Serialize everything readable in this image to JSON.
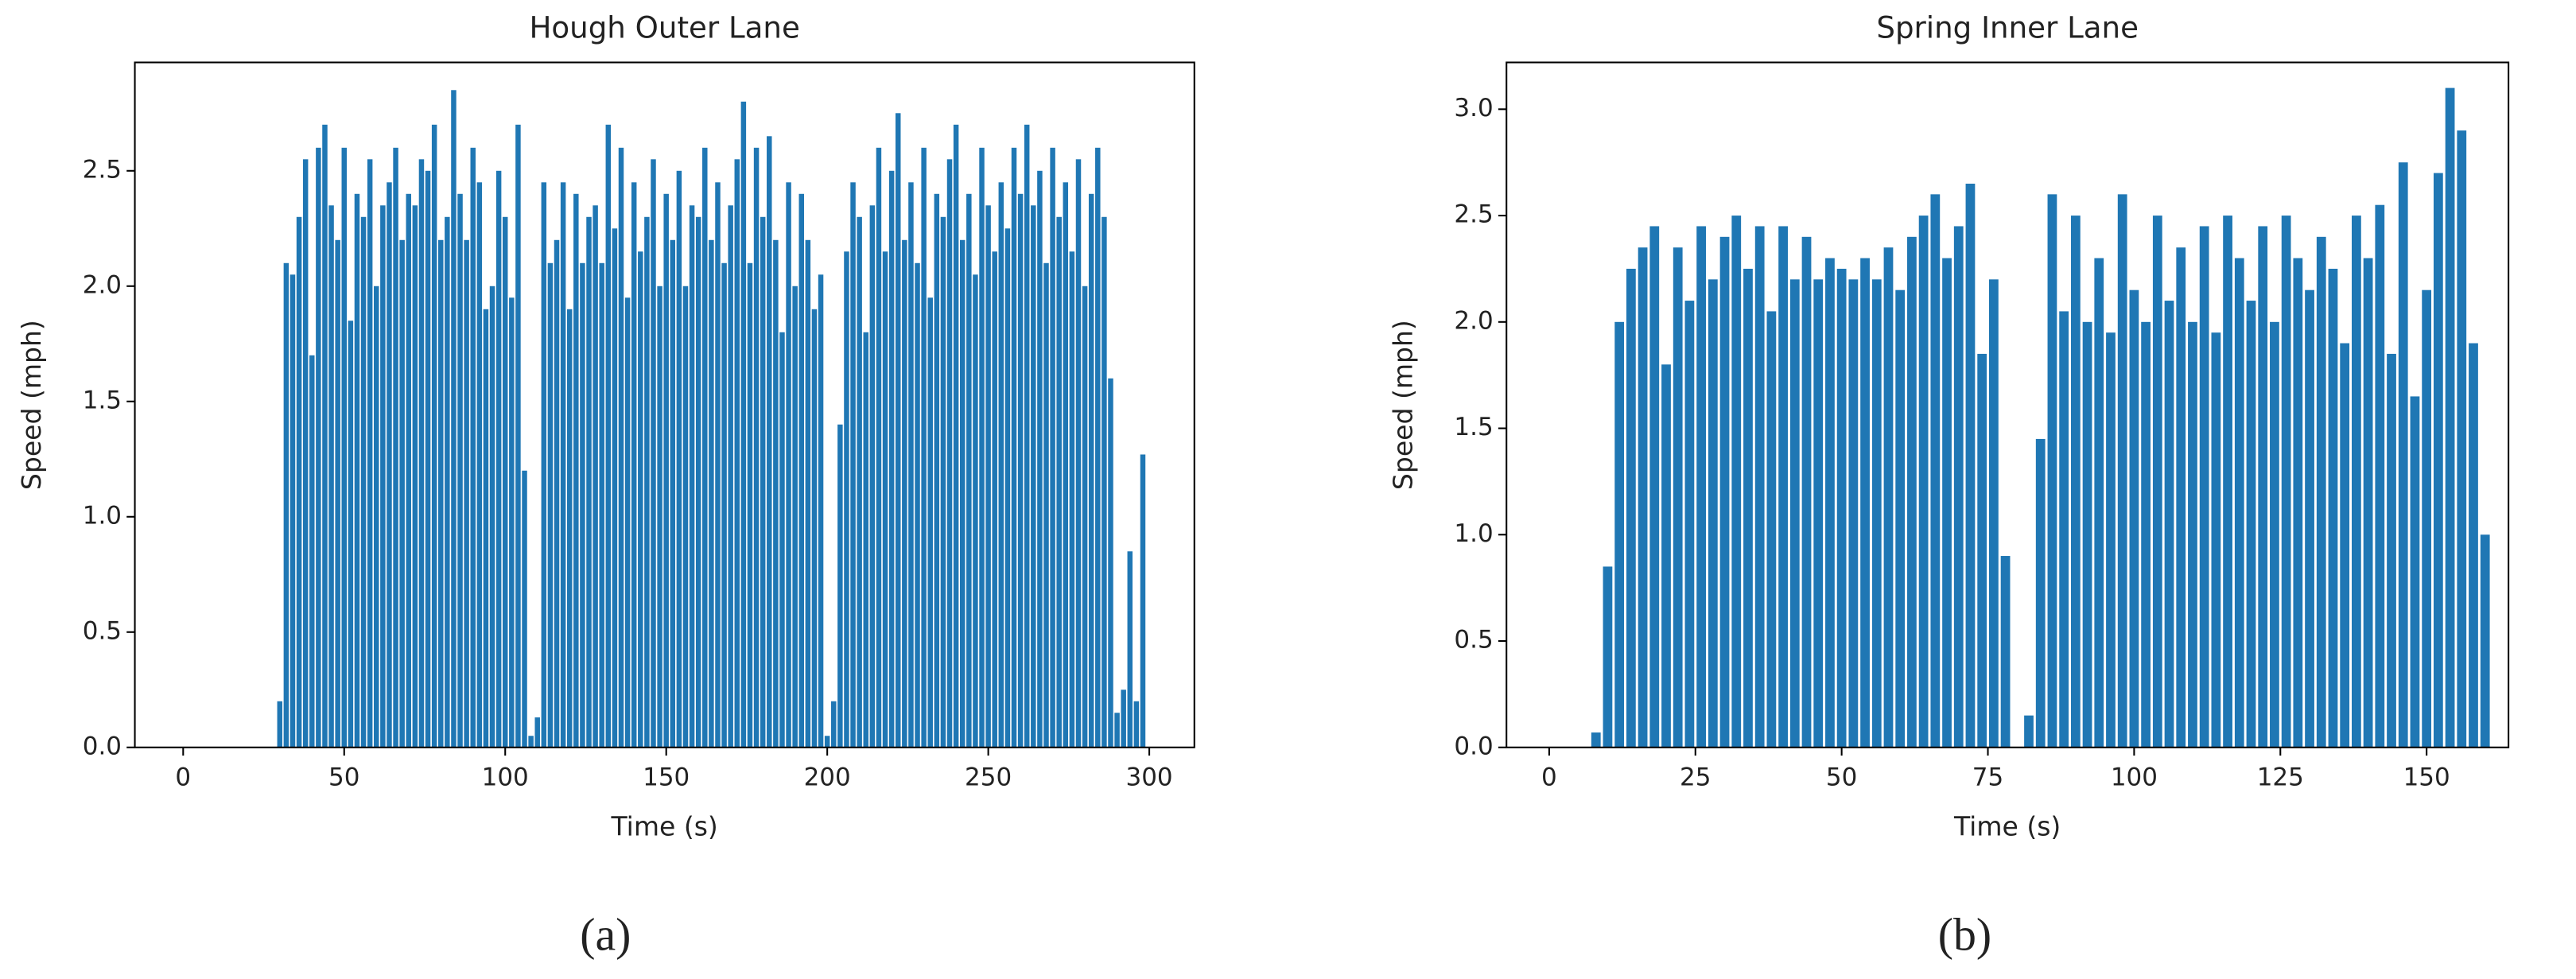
{
  "chart_data": [
    {
      "type": "bar",
      "title": "Hough Outer Lane",
      "xlabel": "Time (s)",
      "ylabel": "Speed (mph)",
      "caption": "(a)",
      "color": "#1f77b4",
      "x": [
        30,
        32,
        34,
        36,
        38,
        40,
        42,
        44,
        46,
        48,
        50,
        52,
        54,
        56,
        58,
        60,
        62,
        64,
        66,
        68,
        70,
        72,
        74,
        76,
        78,
        80,
        82,
        84,
        86,
        88,
        90,
        92,
        94,
        96,
        98,
        100,
        102,
        104,
        106,
        108,
        110,
        112,
        114,
        116,
        118,
        120,
        122,
        124,
        126,
        128,
        130,
        132,
        134,
        136,
        138,
        140,
        142,
        144,
        146,
        148,
        150,
        152,
        154,
        156,
        158,
        160,
        162,
        164,
        166,
        168,
        170,
        172,
        174,
        176,
        178,
        180,
        182,
        184,
        186,
        188,
        190,
        192,
        194,
        196,
        198,
        200,
        202,
        204,
        206,
        208,
        210,
        212,
        214,
        216,
        218,
        220,
        222,
        224,
        226,
        228,
        230,
        232,
        234,
        236,
        238,
        240,
        242,
        244,
        246,
        248,
        250,
        252,
        254,
        256,
        258,
        260,
        262,
        264,
        266,
        268,
        270,
        272,
        274,
        276,
        278,
        280,
        282,
        284,
        286,
        288,
        290,
        292,
        294,
        296,
        298
      ],
      "values": [
        0.2,
        2.1,
        2.05,
        2.3,
        2.55,
        1.7,
        2.6,
        2.7,
        2.35,
        2.2,
        2.6,
        1.85,
        2.4,
        2.3,
        2.55,
        2.0,
        2.35,
        2.45,
        2.6,
        2.2,
        2.4,
        2.35,
        2.55,
        2.5,
        2.7,
        2.2,
        2.3,
        2.85,
        2.4,
        2.2,
        2.6,
        2.45,
        1.9,
        2.0,
        2.5,
        2.3,
        1.95,
        2.7,
        1.2,
        0.05,
        0.13,
        2.45,
        2.1,
        2.2,
        2.45,
        1.9,
        2.4,
        2.1,
        2.3,
        2.35,
        2.1,
        2.7,
        2.25,
        2.6,
        1.95,
        2.45,
        2.15,
        2.3,
        2.55,
        2.0,
        2.4,
        2.2,
        2.5,
        2.0,
        2.35,
        2.3,
        2.6,
        2.2,
        2.45,
        2.1,
        2.35,
        2.55,
        2.8,
        2.1,
        2.6,
        2.3,
        2.65,
        2.2,
        1.8,
        2.45,
        2.0,
        2.4,
        2.2,
        1.9,
        2.05,
        0.05,
        0.2,
        1.4,
        2.15,
        2.45,
        2.3,
        1.8,
        2.35,
        2.6,
        2.15,
        2.5,
        2.75,
        2.2,
        2.45,
        2.1,
        2.6,
        1.95,
        2.4,
        2.3,
        2.55,
        2.7,
        2.2,
        2.4,
        2.05,
        2.6,
        2.35,
        2.15,
        2.45,
        2.25,
        2.6,
        2.4,
        2.7,
        2.35,
        2.5,
        2.1,
        2.6,
        2.3,
        2.45,
        2.15,
        2.55,
        2.0,
        2.4,
        2.6,
        2.3,
        1.6,
        0.15,
        0.25,
        0.85,
        0.2,
        1.27
      ],
      "xlim": [
        -15,
        314
      ],
      "ylim": [
        0,
        2.97
      ],
      "xticks": [
        0,
        50,
        100,
        150,
        200,
        250,
        300
      ],
      "yticks": [
        {
          "value": 0,
          "label": "0.0"
        },
        0.5,
        {
          "value": 1,
          "label": "1.0"
        },
        1.5,
        {
          "value": 2,
          "label": "2.0"
        },
        2.5
      ]
    },
    {
      "type": "bar",
      "title": "Spring Inner Lane",
      "xlabel": "Time (s)",
      "ylabel": "Speed (mph)",
      "caption": "(b)",
      "color": "#1f77b4",
      "x": [
        8,
        10,
        12,
        14,
        16,
        18,
        20,
        22,
        24,
        26,
        28,
        30,
        32,
        34,
        36,
        38,
        40,
        42,
        44,
        46,
        48,
        50,
        52,
        54,
        56,
        58,
        60,
        62,
        64,
        66,
        68,
        70,
        72,
        74,
        76,
        78,
        80,
        82,
        84,
        86,
        88,
        90,
        92,
        94,
        96,
        98,
        100,
        102,
        104,
        106,
        108,
        110,
        112,
        114,
        116,
        118,
        120,
        122,
        124,
        126,
        128,
        130,
        132,
        134,
        136,
        138,
        140,
        142,
        144,
        146,
        148,
        150,
        152,
        154,
        156,
        158,
        160
      ],
      "values": [
        0.07,
        0.85,
        2.0,
        2.25,
        2.35,
        2.45,
        1.8,
        2.35,
        2.1,
        2.45,
        2.2,
        2.4,
        2.5,
        2.25,
        2.45,
        2.05,
        2.45,
        2.2,
        2.4,
        2.2,
        2.3,
        2.25,
        2.2,
        2.3,
        2.2,
        2.35,
        2.15,
        2.4,
        2.5,
        2.6,
        2.3,
        2.45,
        2.65,
        1.85,
        2.2,
        0.9,
        0,
        0.15,
        1.45,
        2.6,
        2.05,
        2.5,
        2.0,
        2.3,
        1.95,
        2.6,
        2.15,
        2.0,
        2.5,
        2.1,
        2.35,
        2.0,
        2.45,
        1.95,
        2.5,
        2.3,
        2.1,
        2.45,
        2.0,
        2.5,
        2.3,
        2.15,
        2.4,
        2.25,
        1.9,
        2.5,
        2.3,
        2.55,
        1.85,
        2.75,
        1.65,
        2.15,
        2.7,
        3.1,
        2.9,
        1.9,
        1.0
      ],
      "xlim": [
        -7.3,
        164
      ],
      "ylim": [
        0,
        3.22
      ],
      "xticks": [
        0,
        25,
        50,
        75,
        100,
        125,
        150
      ],
      "yticks": [
        {
          "value": 0,
          "label": "0.0"
        },
        0.5,
        {
          "value": 1,
          "label": "1.0"
        },
        1.5,
        {
          "value": 2,
          "label": "2.0"
        },
        2.5,
        {
          "value": 3,
          "label": "3.0"
        }
      ]
    }
  ]
}
